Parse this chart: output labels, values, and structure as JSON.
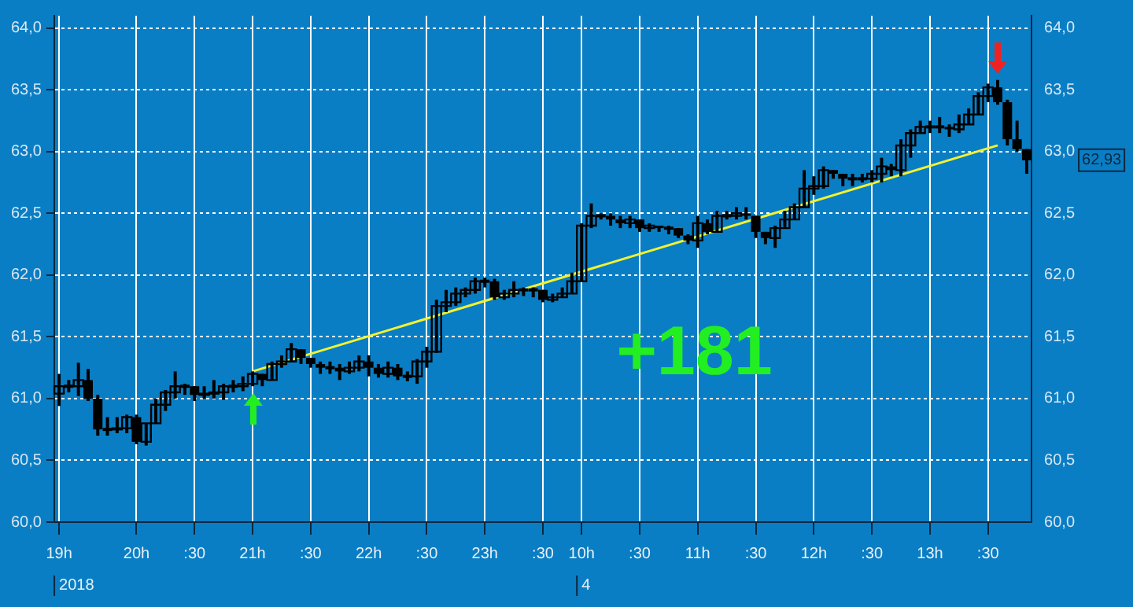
{
  "chart_data": {
    "type": "candlestick",
    "color": "#000000",
    "categories": [
      "19h",
      null,
      null,
      null,
      null,
      null,
      null,
      null,
      "20h",
      null,
      null,
      null,
      null,
      null,
      ":30",
      null,
      null,
      null,
      null,
      null,
      "21h",
      null,
      null,
      null,
      null,
      null,
      ":30",
      null,
      null,
      null,
      null,
      null,
      "22h",
      null,
      null,
      null,
      null,
      null,
      ":30",
      null,
      null,
      null,
      null,
      null,
      "23h",
      null,
      null,
      null,
      null,
      null,
      ":30",
      null,
      null,
      null,
      "10h",
      null,
      null,
      null,
      null,
      null,
      ":30",
      null,
      null,
      null,
      null,
      null,
      "11h",
      null,
      null,
      null,
      null,
      null,
      ":30",
      null,
      null,
      null,
      null,
      null,
      "12h",
      null,
      null,
      null,
      null,
      null,
      ":30",
      null,
      null,
      null,
      null,
      null,
      "13h",
      null,
      null,
      null,
      null,
      null,
      ":30",
      null,
      null,
      null,
      null
    ],
    "ohlc": [
      [
        61.04,
        61.2,
        60.94,
        61.1
      ],
      [
        61.1,
        61.15,
        61.05,
        61.1
      ],
      [
        61.1,
        61.29,
        61.02,
        61.15
      ],
      [
        61.15,
        61.24,
        60.98,
        61.0
      ],
      [
        61.0,
        61.03,
        60.7,
        60.75
      ],
      [
        60.75,
        60.85,
        60.7,
        60.75
      ],
      [
        60.75,
        60.85,
        60.72,
        60.76
      ],
      [
        60.76,
        60.87,
        60.72,
        60.85
      ],
      [
        60.85,
        60.87,
        60.63,
        60.65
      ],
      [
        60.65,
        60.8,
        60.62,
        60.8
      ],
      [
        60.8,
        61.0,
        60.8,
        60.95
      ],
      [
        60.95,
        61.07,
        60.9,
        61.05
      ],
      [
        61.05,
        61.22,
        61.0,
        61.1
      ],
      [
        61.1,
        61.12,
        61.03,
        61.1
      ],
      [
        61.1,
        61.1,
        60.98,
        61.03
      ],
      [
        61.03,
        61.1,
        61.0,
        61.04
      ],
      [
        61.04,
        61.15,
        61.0,
        61.05
      ],
      [
        61.05,
        61.12,
        60.99,
        61.1
      ],
      [
        61.1,
        61.15,
        61.05,
        61.1
      ],
      [
        61.1,
        61.18,
        61.06,
        61.12
      ],
      [
        61.12,
        61.22,
        61.1,
        61.2
      ],
      [
        61.2,
        61.2,
        61.1,
        61.15
      ],
      [
        61.15,
        61.3,
        61.15,
        61.28
      ],
      [
        61.28,
        61.35,
        61.25,
        61.3
      ],
      [
        61.3,
        61.45,
        61.3,
        61.4
      ],
      [
        61.4,
        61.4,
        61.28,
        61.33
      ],
      [
        61.33,
        61.33,
        61.25,
        61.28
      ],
      [
        61.28,
        61.3,
        61.2,
        61.25
      ],
      [
        61.25,
        61.3,
        61.2,
        61.25
      ],
      [
        61.25,
        61.28,
        61.15,
        61.22
      ],
      [
        61.22,
        61.3,
        61.2,
        61.25
      ],
      [
        61.25,
        61.35,
        61.22,
        61.3
      ],
      [
        61.3,
        61.35,
        61.18,
        61.25
      ],
      [
        61.25,
        61.28,
        61.17,
        61.2
      ],
      [
        61.2,
        61.3,
        61.17,
        61.25
      ],
      [
        61.25,
        61.28,
        61.15,
        61.18
      ],
      [
        61.18,
        61.22,
        61.14,
        61.18
      ],
      [
        61.18,
        61.32,
        61.12,
        61.3
      ],
      [
        61.3,
        61.42,
        61.25,
        61.38
      ],
      [
        61.38,
        61.8,
        61.37,
        61.75
      ],
      [
        61.75,
        61.88,
        61.7,
        61.78
      ],
      [
        61.78,
        61.9,
        61.75,
        61.85
      ],
      [
        61.85,
        61.9,
        61.82,
        61.88
      ],
      [
        61.88,
        61.98,
        61.85,
        61.95
      ],
      [
        61.95,
        61.98,
        61.9,
        61.95
      ],
      [
        61.95,
        61.97,
        61.8,
        61.82
      ],
      [
        61.82,
        61.88,
        61.8,
        61.85
      ],
      [
        61.85,
        61.95,
        61.82,
        61.88
      ],
      [
        61.88,
        61.9,
        61.83,
        61.88
      ],
      [
        61.88,
        61.9,
        61.82,
        61.88
      ],
      [
        61.88,
        61.88,
        61.78,
        61.8
      ],
      [
        61.8,
        61.85,
        61.78,
        61.82
      ],
      [
        61.82,
        61.9,
        61.82,
        61.85
      ],
      [
        61.85,
        62.02,
        61.85,
        61.95
      ],
      [
        61.95,
        62.42,
        61.95,
        62.4
      ],
      [
        62.4,
        62.58,
        62.38,
        62.48
      ],
      [
        62.48,
        62.5,
        62.45,
        62.48
      ],
      [
        62.48,
        62.5,
        62.4,
        62.45
      ],
      [
        62.45,
        62.48,
        62.38,
        62.42
      ],
      [
        62.42,
        62.48,
        62.38,
        62.45
      ],
      [
        62.45,
        62.45,
        62.35,
        62.38
      ],
      [
        62.38,
        62.42,
        62.35,
        62.4
      ],
      [
        62.4,
        62.4,
        62.35,
        62.38
      ],
      [
        62.38,
        62.4,
        62.33,
        62.38
      ],
      [
        62.38,
        62.38,
        62.3,
        62.32
      ],
      [
        62.32,
        62.33,
        62.25,
        62.28
      ],
      [
        62.28,
        62.48,
        62.22,
        62.42
      ],
      [
        62.42,
        62.45,
        62.33,
        62.35
      ],
      [
        62.35,
        62.52,
        62.35,
        62.48
      ],
      [
        62.48,
        62.52,
        62.45,
        62.48
      ],
      [
        62.48,
        62.55,
        62.45,
        62.5
      ],
      [
        62.5,
        62.55,
        62.45,
        62.48
      ],
      [
        62.48,
        62.48,
        62.3,
        62.35
      ],
      [
        62.35,
        62.35,
        62.25,
        62.3
      ],
      [
        62.3,
        62.4,
        62.22,
        62.38
      ],
      [
        62.38,
        62.52,
        62.38,
        62.45
      ],
      [
        62.45,
        62.58,
        62.45,
        62.55
      ],
      [
        62.55,
        62.85,
        62.55,
        62.7
      ],
      [
        62.7,
        62.8,
        62.65,
        62.72
      ],
      [
        62.72,
        62.88,
        62.7,
        62.85
      ],
      [
        62.85,
        62.85,
        62.78,
        62.82
      ],
      [
        62.82,
        62.82,
        62.72,
        62.78
      ],
      [
        62.78,
        62.82,
        62.72,
        62.78
      ],
      [
        62.78,
        62.82,
        62.75,
        62.78
      ],
      [
        62.78,
        62.85,
        62.75,
        62.82
      ],
      [
        62.82,
        62.95,
        62.75,
        62.88
      ],
      [
        62.88,
        62.9,
        62.8,
        62.85
      ],
      [
        62.85,
        63.1,
        62.8,
        63.05
      ],
      [
        63.05,
        63.18,
        62.95,
        63.15
      ],
      [
        63.15,
        63.25,
        63.15,
        63.2
      ],
      [
        63.2,
        63.25,
        63.15,
        63.2
      ],
      [
        63.2,
        63.28,
        63.15,
        63.2
      ],
      [
        63.2,
        63.22,
        63.12,
        63.18
      ],
      [
        63.18,
        63.3,
        63.15,
        63.22
      ],
      [
        63.22,
        63.35,
        63.22,
        63.3
      ],
      [
        63.3,
        63.48,
        63.3,
        63.45
      ],
      [
        63.45,
        63.55,
        63.4,
        63.52
      ],
      [
        63.52,
        63.58,
        63.38,
        63.4
      ],
      [
        63.4,
        63.42,
        63.05,
        63.1
      ],
      [
        63.1,
        63.25,
        63.0,
        63.02
      ],
      [
        63.02,
        63.02,
        62.82,
        62.93
      ]
    ],
    "series": [
      {
        "type": "line",
        "color": "#f2f230",
        "values": [
          null,
          null,
          null,
          null,
          null,
          null,
          null,
          null,
          null,
          null,
          null,
          null,
          null,
          null,
          null,
          null,
          null,
          null,
          null,
          null,
          61.22,
          null,
          null,
          null,
          null,
          null,
          null,
          null,
          null,
          null,
          null,
          null,
          null,
          null,
          null,
          null,
          null,
          null,
          null,
          null,
          null,
          null,
          null,
          null,
          null,
          null,
          null,
          null,
          null,
          null,
          null,
          null,
          null,
          null,
          null,
          null,
          null,
          null,
          null,
          null,
          null,
          null,
          null,
          null,
          null,
          null,
          null,
          null,
          null,
          null,
          null,
          null,
          null,
          null,
          null,
          null,
          null,
          null,
          null,
          null,
          null,
          null,
          null,
          null,
          null,
          null,
          null,
          null,
          null,
          null,
          null,
          null,
          null,
          null,
          null,
          null,
          null,
          63.05,
          null,
          null,
          null
        ]
      }
    ],
    "ylim": [
      60,
      64.1
    ],
    "yticks": [
      {
        "value": 60,
        "label": "60,0"
      },
      {
        "value": 60.5,
        "label": "60,5"
      },
      {
        "value": 61,
        "label": "61,0"
      },
      {
        "value": 61.5,
        "label": "61,5"
      },
      {
        "value": 62,
        "label": "62,0"
      },
      {
        "value": 62.5,
        "label": "62,5"
      },
      {
        "value": 63,
        "label": "63,0"
      },
      {
        "value": 63.5,
        "label": "63,5"
      },
      {
        "value": 64,
        "label": "64,0"
      }
    ],
    "y2lim": [
      60,
      64.1
    ],
    "y2ticks": [
      {
        "value": 60,
        "label": "60,0"
      },
      {
        "value": 60.5,
        "label": "60,5"
      },
      {
        "value": 61,
        "label": "61,0"
      },
      {
        "value": 61.5,
        "label": "61,5"
      },
      {
        "value": 62,
        "label": "62,0"
      },
      {
        "value": 62.5,
        "label": "62,5"
      },
      {
        "value": 63,
        "label": "63,0"
      },
      {
        "value": 63.5,
        "label": "63,5"
      },
      {
        "value": 64,
        "label": "64,0"
      }
    ],
    "grid": true,
    "annotations": [
      "+181",
      "62,93",
      "2018",
      "4"
    ]
  }
}
